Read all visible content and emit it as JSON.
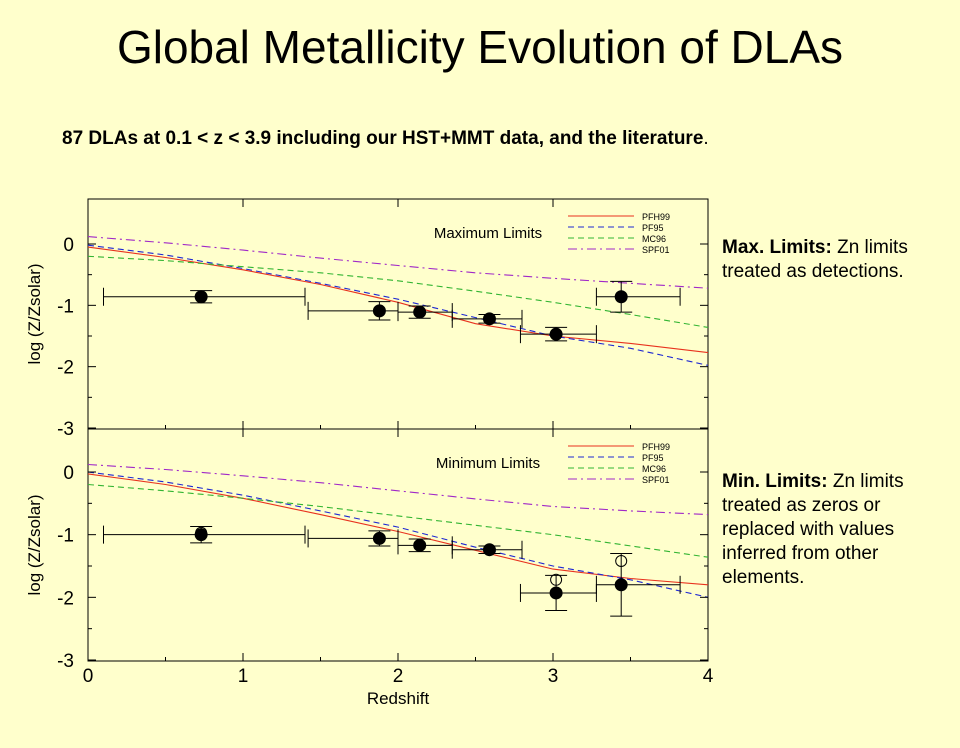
{
  "slide": {
    "title": "Global Metallicity Evolution of DLAs",
    "subtitle": "87 DLAs at 0.1 < z < 3.9 including our HST+MMT data, and the literature",
    "subtitle_end": "."
  },
  "notes": {
    "max_label": "Max. Limits:",
    "max_text": " Zn limits treated as detections.",
    "min_label": "Min. Limits:",
    "min_text": " Zn limits treated as zeros or replaced with values inferred from other elements."
  },
  "colors": {
    "background": "#ffffcc",
    "PFH99": "#e8321e",
    "PF95": "#1e28d2",
    "MC96": "#32b432",
    "SPF01": "#a028c8",
    "data": "#000000"
  },
  "chart_data": [
    {
      "type": "scatter",
      "title": "Maximum Limits",
      "xlabel": "Redshift",
      "ylabel": "log (Z/Zsolar)",
      "xlim": [
        0,
        4
      ],
      "ylim": [
        -3,
        0.7
      ],
      "xticks": [
        "0",
        "1",
        "2",
        "3",
        "4"
      ],
      "yticks": [
        "0",
        "-1",
        "-2",
        "-3"
      ],
      "legend_position": "top-right",
      "points": [
        {
          "x": 0.73,
          "y": -0.86,
          "xerr": [
            0.63,
            0.67
          ],
          "yerr": 0.1,
          "filled": true
        },
        {
          "x": 1.88,
          "y": -1.09,
          "xerr": [
            0.46,
            0.12
          ],
          "yerr": 0.15,
          "filled": true
        },
        {
          "x": 2.14,
          "y": -1.11,
          "xerr": [
            0.14,
            0.21
          ],
          "yerr": 0.1,
          "filled": true
        },
        {
          "x": 2.59,
          "y": -1.22,
          "xerr": [
            0.24,
            0.21
          ],
          "yerr": 0.07,
          "filled": true
        },
        {
          "x": 3.02,
          "y": -1.47,
          "xerr": [
            0.23,
            0.26
          ],
          "yerr": 0.11,
          "filled": true
        },
        {
          "x": 3.44,
          "y": -0.86,
          "xerr": [
            0.16,
            0.38
          ],
          "yerr": 0.25,
          "filled": true
        }
      ],
      "series": [
        {
          "name": "PFH99",
          "style": "solid",
          "x": [
            0,
            0.5,
            1,
            1.5,
            2,
            2.5,
            3,
            3.5,
            4
          ],
          "y": [
            -0.05,
            -0.22,
            -0.42,
            -0.66,
            -0.95,
            -1.3,
            -1.5,
            -1.62,
            -1.77
          ]
        },
        {
          "name": "PF95",
          "style": "dashed",
          "x": [
            0,
            0.5,
            1,
            1.5,
            2,
            2.5,
            3,
            3.5,
            4
          ],
          "y": [
            -0.02,
            -0.18,
            -0.4,
            -0.64,
            -0.9,
            -1.2,
            -1.5,
            -1.7,
            -1.98
          ]
        },
        {
          "name": "MC96",
          "style": "dashed",
          "x": [
            0,
            0.5,
            1,
            1.5,
            2,
            2.5,
            3,
            3.5,
            4
          ],
          "y": [
            -0.2,
            -0.27,
            -0.37,
            -0.47,
            -0.6,
            -0.77,
            -0.95,
            -1.15,
            -1.36
          ]
        },
        {
          "name": "SPF01",
          "style": "dashdot",
          "x": [
            0,
            0.5,
            1,
            1.5,
            2,
            2.5,
            3,
            3.5,
            4
          ],
          "y": [
            0.12,
            0.02,
            -0.1,
            -0.23,
            -0.35,
            -0.47,
            -0.56,
            -0.64,
            -0.72
          ]
        }
      ]
    },
    {
      "type": "scatter",
      "title": "Minimum Limits",
      "xlabel": "Redshift",
      "ylabel": "log (Z/Zsolar)",
      "xlim": [
        0,
        4
      ],
      "ylim": [
        -3,
        0.7
      ],
      "xticks": [
        "0",
        "1",
        "2",
        "3",
        "4"
      ],
      "yticks": [
        "0",
        "-1",
        "-2",
        "-3"
      ],
      "legend_position": "top-right",
      "points": [
        {
          "x": 0.73,
          "y": -1.0,
          "xerr": [
            0.63,
            0.67
          ],
          "yerr": 0.13,
          "filled": true
        },
        {
          "x": 0.73,
          "y": -0.97,
          "filled": false
        },
        {
          "x": 1.88,
          "y": -1.06,
          "xerr": [
            0.46,
            0.12
          ],
          "yerr": 0.12,
          "filled": true
        },
        {
          "x": 2.14,
          "y": -1.17,
          "xerr": [
            0.14,
            0.21
          ],
          "yerr": 0.1,
          "filled": true
        },
        {
          "x": 2.59,
          "y": -1.24,
          "xerr": [
            0.24,
            0.21
          ],
          "yerr": 0.06,
          "filled": true
        },
        {
          "x": 3.02,
          "y": -1.93,
          "xerr": [
            0.23,
            0.26
          ],
          "yerr": 0.28,
          "filled": true
        },
        {
          "x": 3.02,
          "y": -1.72,
          "filled": false
        },
        {
          "x": 3.44,
          "y": -1.8,
          "xerr": [
            0.16,
            0.38
          ],
          "yerr": 0.5,
          "filled": true
        },
        {
          "x": 3.44,
          "y": -1.42,
          "filled": false
        }
      ],
      "series": [
        {
          "name": "PFH99",
          "style": "solid",
          "x": [
            0,
            0.5,
            1,
            1.5,
            2,
            2.5,
            3,
            3.5,
            4
          ],
          "y": [
            -0.03,
            -0.2,
            -0.42,
            -0.68,
            -0.95,
            -1.25,
            -1.55,
            -1.7,
            -1.8
          ]
        },
        {
          "name": "PF95",
          "style": "dashed",
          "x": [
            0,
            0.5,
            1,
            1.5,
            2,
            2.5,
            3,
            3.5,
            4
          ],
          "y": [
            0.0,
            -0.16,
            -0.37,
            -0.62,
            -0.88,
            -1.2,
            -1.5,
            -1.72,
            -2.0
          ]
        },
        {
          "name": "MC96",
          "style": "dashed",
          "x": [
            0,
            0.5,
            1,
            1.5,
            2,
            2.5,
            3,
            3.5,
            4
          ],
          "y": [
            -0.2,
            -0.3,
            -0.42,
            -0.55,
            -0.7,
            -0.85,
            -1.0,
            -1.18,
            -1.36
          ]
        },
        {
          "name": "SPF01",
          "style": "dashdot",
          "x": [
            0,
            0.5,
            1,
            1.5,
            2,
            2.5,
            3,
            3.5,
            4
          ],
          "y": [
            0.12,
            0.04,
            -0.06,
            -0.17,
            -0.3,
            -0.43,
            -0.55,
            -0.62,
            -0.68
          ]
        }
      ]
    }
  ]
}
